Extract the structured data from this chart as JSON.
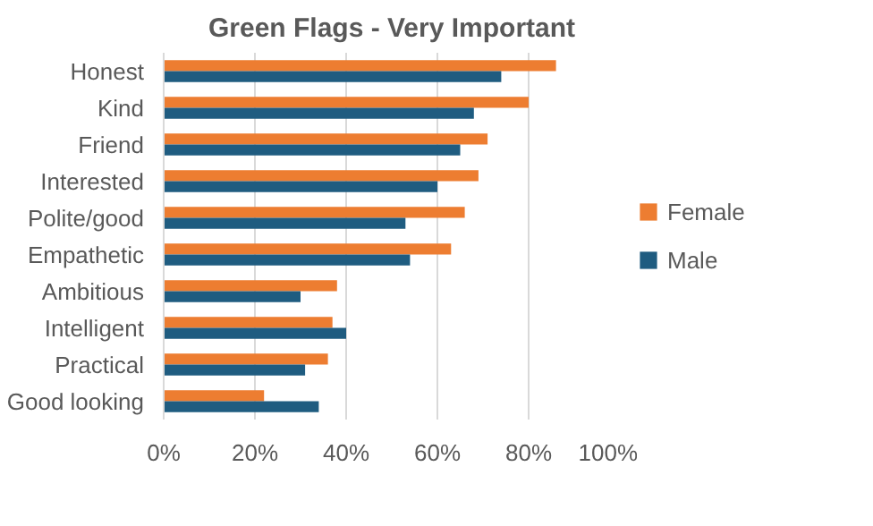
{
  "chart_data": {
    "type": "bar",
    "orientation": "horizontal",
    "title": "Green Flags - Very Important",
    "categories": [
      "Honest",
      "Kind",
      "Friend",
      "Interested",
      "Polite/good",
      "Empathetic",
      "Ambitious",
      "Intelligent",
      "Practical",
      "Good looking"
    ],
    "series": [
      {
        "name": "Female",
        "color": "#ed7d31",
        "values": [
          86,
          80,
          71,
          69,
          66,
          63,
          38,
          37,
          36,
          22
        ]
      },
      {
        "name": "Male",
        "color": "#1f5c80",
        "values": [
          74,
          68,
          65,
          60,
          53,
          54,
          30,
          40,
          31,
          34
        ]
      }
    ],
    "xlim": [
      0,
      100
    ],
    "xticks": [
      {
        "value": 0,
        "label": "0%"
      },
      {
        "value": 20,
        "label": "20%"
      },
      {
        "value": 40,
        "label": "40%"
      },
      {
        "value": 60,
        "label": "60%"
      },
      {
        "value": 80,
        "label": "80%"
      },
      {
        "value": 100,
        "label": "100%"
      }
    ],
    "grid": "x",
    "legend": "right"
  }
}
